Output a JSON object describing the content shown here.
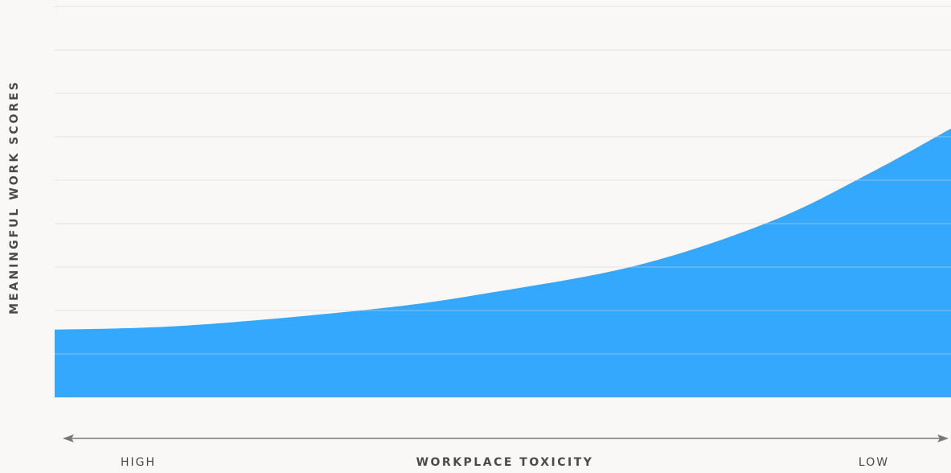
{
  "chart_data": {
    "type": "area",
    "y_label": "MEANINGFUL WORK SCORES",
    "x_label": "WORKPLACE TOXICITY",
    "x_start_label": "HIGH",
    "x_end_label": "LOW",
    "x": [
      0,
      0.145,
      0.35,
      0.48,
      0.65,
      0.8,
      0.91,
      1
    ],
    "values": [
      1.56,
      1.65,
      2.02,
      2.39,
      3.04,
      4.06,
      5.17,
      6.19
    ],
    "xlim": [
      0,
      1
    ],
    "ylim": [
      0,
      9
    ],
    "yticks": [
      1,
      2,
      3,
      4,
      5,
      6,
      7,
      8,
      9
    ],
    "grid": true,
    "color": "#33a8fc"
  }
}
